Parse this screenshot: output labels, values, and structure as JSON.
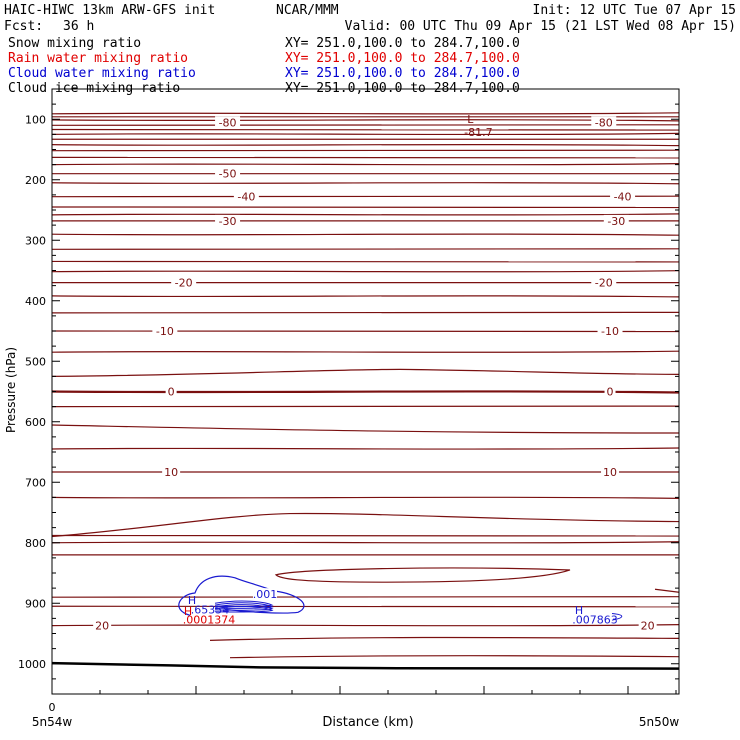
{
  "header": {
    "model": "HAIC-HIWC 13km ARW-GFS init",
    "center": "NCAR/MMM",
    "init": "Init: 12 UTC Tue 07 Apr 15",
    "fcst_label": "Fcst:",
    "fcst_value": "36 h",
    "valid": "Valid: 00 UTC Thu 09 Apr 15 (21 LST Wed 08 Apr 15)"
  },
  "fields": [
    {
      "name": "Snow mixing ratio",
      "xy": "XY= 251.0,100.0 to 284.7,100.0",
      "color": "#000000"
    },
    {
      "name": "Rain water mixing ratio",
      "xy": "XY= 251.0,100.0 to 284.7,100.0",
      "color": "#e00000"
    },
    {
      "name": "Cloud water mixing ratio",
      "xy": "XY= 251.0,100.0 to 284.7,100.0",
      "color": "#0000d0"
    },
    {
      "name": "Cloud ice mixing ratio",
      "xy": "XY= 251.0,100.0 to 284.7,100.0",
      "color": "#000000"
    }
  ],
  "colors": {
    "temperature": "#7a1010",
    "rain": "#e00000",
    "cloud_water": "#1a1ad0",
    "axes": "#000000"
  },
  "chart_data": {
    "type": "line",
    "title": "",
    "xlabel": "Distance (km)",
    "ylabel": "Pressure (hPa)",
    "x_tick_labels": [
      "0"
    ],
    "x_end_labels": [
      "5n54w",
      "5n50w"
    ],
    "y_ticks": [
      100,
      200,
      300,
      400,
      500,
      600,
      700,
      800,
      900,
      1000
    ],
    "ylim": [
      1050,
      50
    ],
    "isotherm_labels": [
      {
        "text": "-80",
        "pressure": 105,
        "distance_frac": 0.28
      },
      {
        "text": "-80",
        "pressure": 105,
        "distance_frac": 0.88
      },
      {
        "text": "-50",
        "pressure": 190,
        "distance_frac": 0.28
      },
      {
        "text": "-40",
        "pressure": 228,
        "distance_frac": 0.31
      },
      {
        "text": "-40",
        "pressure": 228,
        "distance_frac": 0.91
      },
      {
        "text": "-30",
        "pressure": 268,
        "distance_frac": 0.28
      },
      {
        "text": "-30",
        "pressure": 268,
        "distance_frac": 0.9
      },
      {
        "text": "-20",
        "pressure": 370,
        "distance_frac": 0.21
      },
      {
        "text": "-20",
        "pressure": 370,
        "distance_frac": 0.88
      },
      {
        "text": "-10",
        "pressure": 450,
        "distance_frac": 0.18
      },
      {
        "text": "-10",
        "pressure": 450,
        "distance_frac": 0.89
      },
      {
        "text": "0",
        "pressure": 550,
        "distance_frac": 0.19
      },
      {
        "text": "0",
        "pressure": 550,
        "distance_frac": 0.89
      },
      {
        "text": "10",
        "pressure": 683,
        "distance_frac": 0.19
      },
      {
        "text": "10",
        "pressure": 683,
        "distance_frac": 0.89
      },
      {
        "text": "20",
        "pressure": 937,
        "distance_frac": 0.08
      },
      {
        "text": "20",
        "pressure": 937,
        "distance_frac": 0.95
      }
    ],
    "low_marker": {
      "symbol": "L",
      "value": "-81.7",
      "pressure": 90,
      "distance_frac": 0.68
    },
    "cloud_water": {
      "max_value": ".65354",
      "contour_label": ".001",
      "second_max_value": ".007863",
      "max_symbol": "H"
    },
    "rain_water": {
      "max_value": ".0001374",
      "max_symbol": "H"
    }
  }
}
